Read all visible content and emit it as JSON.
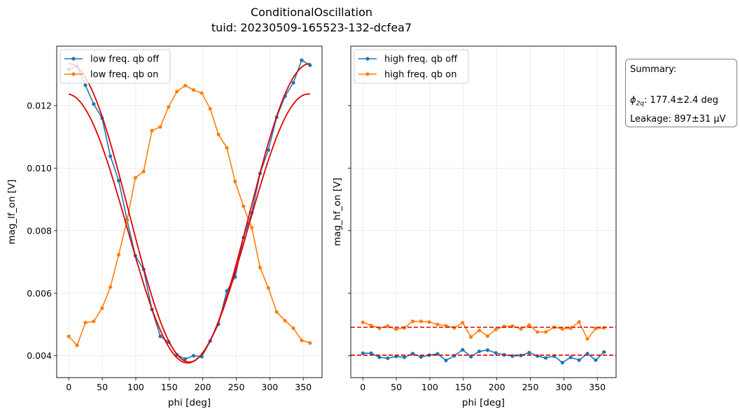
{
  "figure": {
    "title_line1": "ConditionalOscillation",
    "title_line2": "tuid: 20230509-165523-132-dcfea7"
  },
  "summary": {
    "heading": "Summary:",
    "phi_label": "ϕ",
    "phi_sub": "2q",
    "phi_value": ": 177.4±2.4 deg",
    "leakage": "Leakage: 897±31 µV"
  },
  "colors": {
    "blue": "#1f77b4",
    "orange": "#ff7f0e",
    "fit": "#e00000",
    "grid": "#e8e8e8"
  },
  "chart_data": [
    {
      "type": "line",
      "xlabel": "phi [deg]",
      "ylabel": "mag_lf_on [V]",
      "xlim": [
        -18,
        378
      ],
      "ylim": [
        0.0033,
        0.0139
      ],
      "xticks": [
        0,
        50,
        100,
        150,
        200,
        250,
        300,
        350
      ],
      "yticks": [
        0.004,
        0.006,
        0.008,
        0.01,
        0.012
      ],
      "ytick_labels": [
        "0.004",
        "0.006",
        "0.008",
        "0.010",
        "0.012"
      ],
      "grid": true,
      "legend": "upper left",
      "x": [
        0,
        12.4,
        24.8,
        37.2,
        49.7,
        62.1,
        74.5,
        86.9,
        99.3,
        111.7,
        124.1,
        136.6,
        149,
        161.4,
        173.8,
        186.2,
        198.6,
        211,
        223.4,
        235.9,
        248.3,
        260.7,
        273.1,
        285.5,
        297.9,
        310.3,
        322.8,
        335.2,
        347.6,
        360
      ],
      "series": [
        {
          "name": "low freq. qb off",
          "color": "#1f77b4",
          "values": [
            0.01316,
            0.01326,
            0.01265,
            0.01205,
            0.0116,
            0.01038,
            0.0096,
            0.00835,
            0.0072,
            0.00676,
            0.00548,
            0.00462,
            0.00444,
            0.00403,
            0.0039,
            0.004,
            0.00397,
            0.00447,
            0.00501,
            0.00607,
            0.00652,
            0.00778,
            0.00857,
            0.00983,
            0.01058,
            0.01163,
            0.0123,
            0.01273,
            0.01345,
            0.01329
          ]
        },
        {
          "name": "low freq. qb on",
          "color": "#ff7f0e",
          "values": [
            0.00462,
            0.00433,
            0.00506,
            0.0051,
            0.00552,
            0.0062,
            0.00723,
            0.00832,
            0.00969,
            0.00989,
            0.0112,
            0.01132,
            0.01196,
            0.01245,
            0.01264,
            0.0125,
            0.0124,
            0.0119,
            0.01108,
            0.01065,
            0.00957,
            0.00878,
            0.0081,
            0.00682,
            0.00617,
            0.0054,
            0.00512,
            0.00488,
            0.00449,
            0.00441
          ]
        }
      ],
      "fits": [
        {
          "type": "cosine",
          "offset": 0.00857,
          "amplitude": 0.00477,
          "phase_deg": 0,
          "x_range": [
            0,
            360
          ]
        },
        {
          "type": "cosine",
          "offset": 0.00807,
          "amplitude": -0.0043,
          "phase_deg": 177.4,
          "x_range": [
            0,
            360
          ]
        }
      ]
    },
    {
      "type": "line",
      "xlabel": "phi [deg]",
      "ylabel": "mag_hf_on [V]",
      "xlim": [
        -18,
        378
      ],
      "ylim": [
        0.0033,
        0.0139
      ],
      "xticks": [
        0,
        50,
        100,
        150,
        200,
        250,
        300,
        350
      ],
      "grid": true,
      "legend": "upper left",
      "x": [
        0,
        12.4,
        24.8,
        37.2,
        49.7,
        62.1,
        74.5,
        86.9,
        99.3,
        111.7,
        124.1,
        136.6,
        149,
        161.4,
        173.8,
        186.2,
        198.6,
        211,
        223.4,
        235.9,
        248.3,
        260.7,
        273.1,
        285.5,
        297.9,
        310.3,
        322.8,
        335.2,
        347.6,
        360
      ],
      "series": [
        {
          "name": "high freq. qb off",
          "color": "#1f77b4",
          "values": [
            0.00408,
            0.00408,
            0.00395,
            0.00392,
            0.00398,
            0.00395,
            0.00407,
            0.00396,
            0.00402,
            0.00406,
            0.00385,
            0.004,
            0.00419,
            0.00397,
            0.00414,
            0.00418,
            0.00409,
            0.00403,
            0.00399,
            0.00401,
            0.0041,
            0.00399,
            0.00393,
            0.00399,
            0.00378,
            0.00395,
            0.00386,
            0.00407,
            0.00386,
            0.00412
          ]
        },
        {
          "name": "high freq. qb on",
          "color": "#ff7f0e",
          "values": [
            0.00507,
            0.00497,
            0.00488,
            0.00495,
            0.00485,
            0.00489,
            0.0051,
            0.0051,
            0.00508,
            0.005,
            0.00496,
            0.00489,
            0.00506,
            0.0046,
            0.00481,
            0.00463,
            0.00484,
            0.00494,
            0.00495,
            0.00486,
            0.00498,
            0.00476,
            0.00476,
            0.00491,
            0.00486,
            0.00488,
            0.00508,
            0.00454,
            0.00487,
            0.00489
          ]
        }
      ],
      "hlines": [
        {
          "y": 0.00402,
          "color": "#e00000",
          "style": "dashed"
        },
        {
          "y": 0.00491,
          "color": "#e00000",
          "style": "dashed"
        }
      ]
    }
  ]
}
